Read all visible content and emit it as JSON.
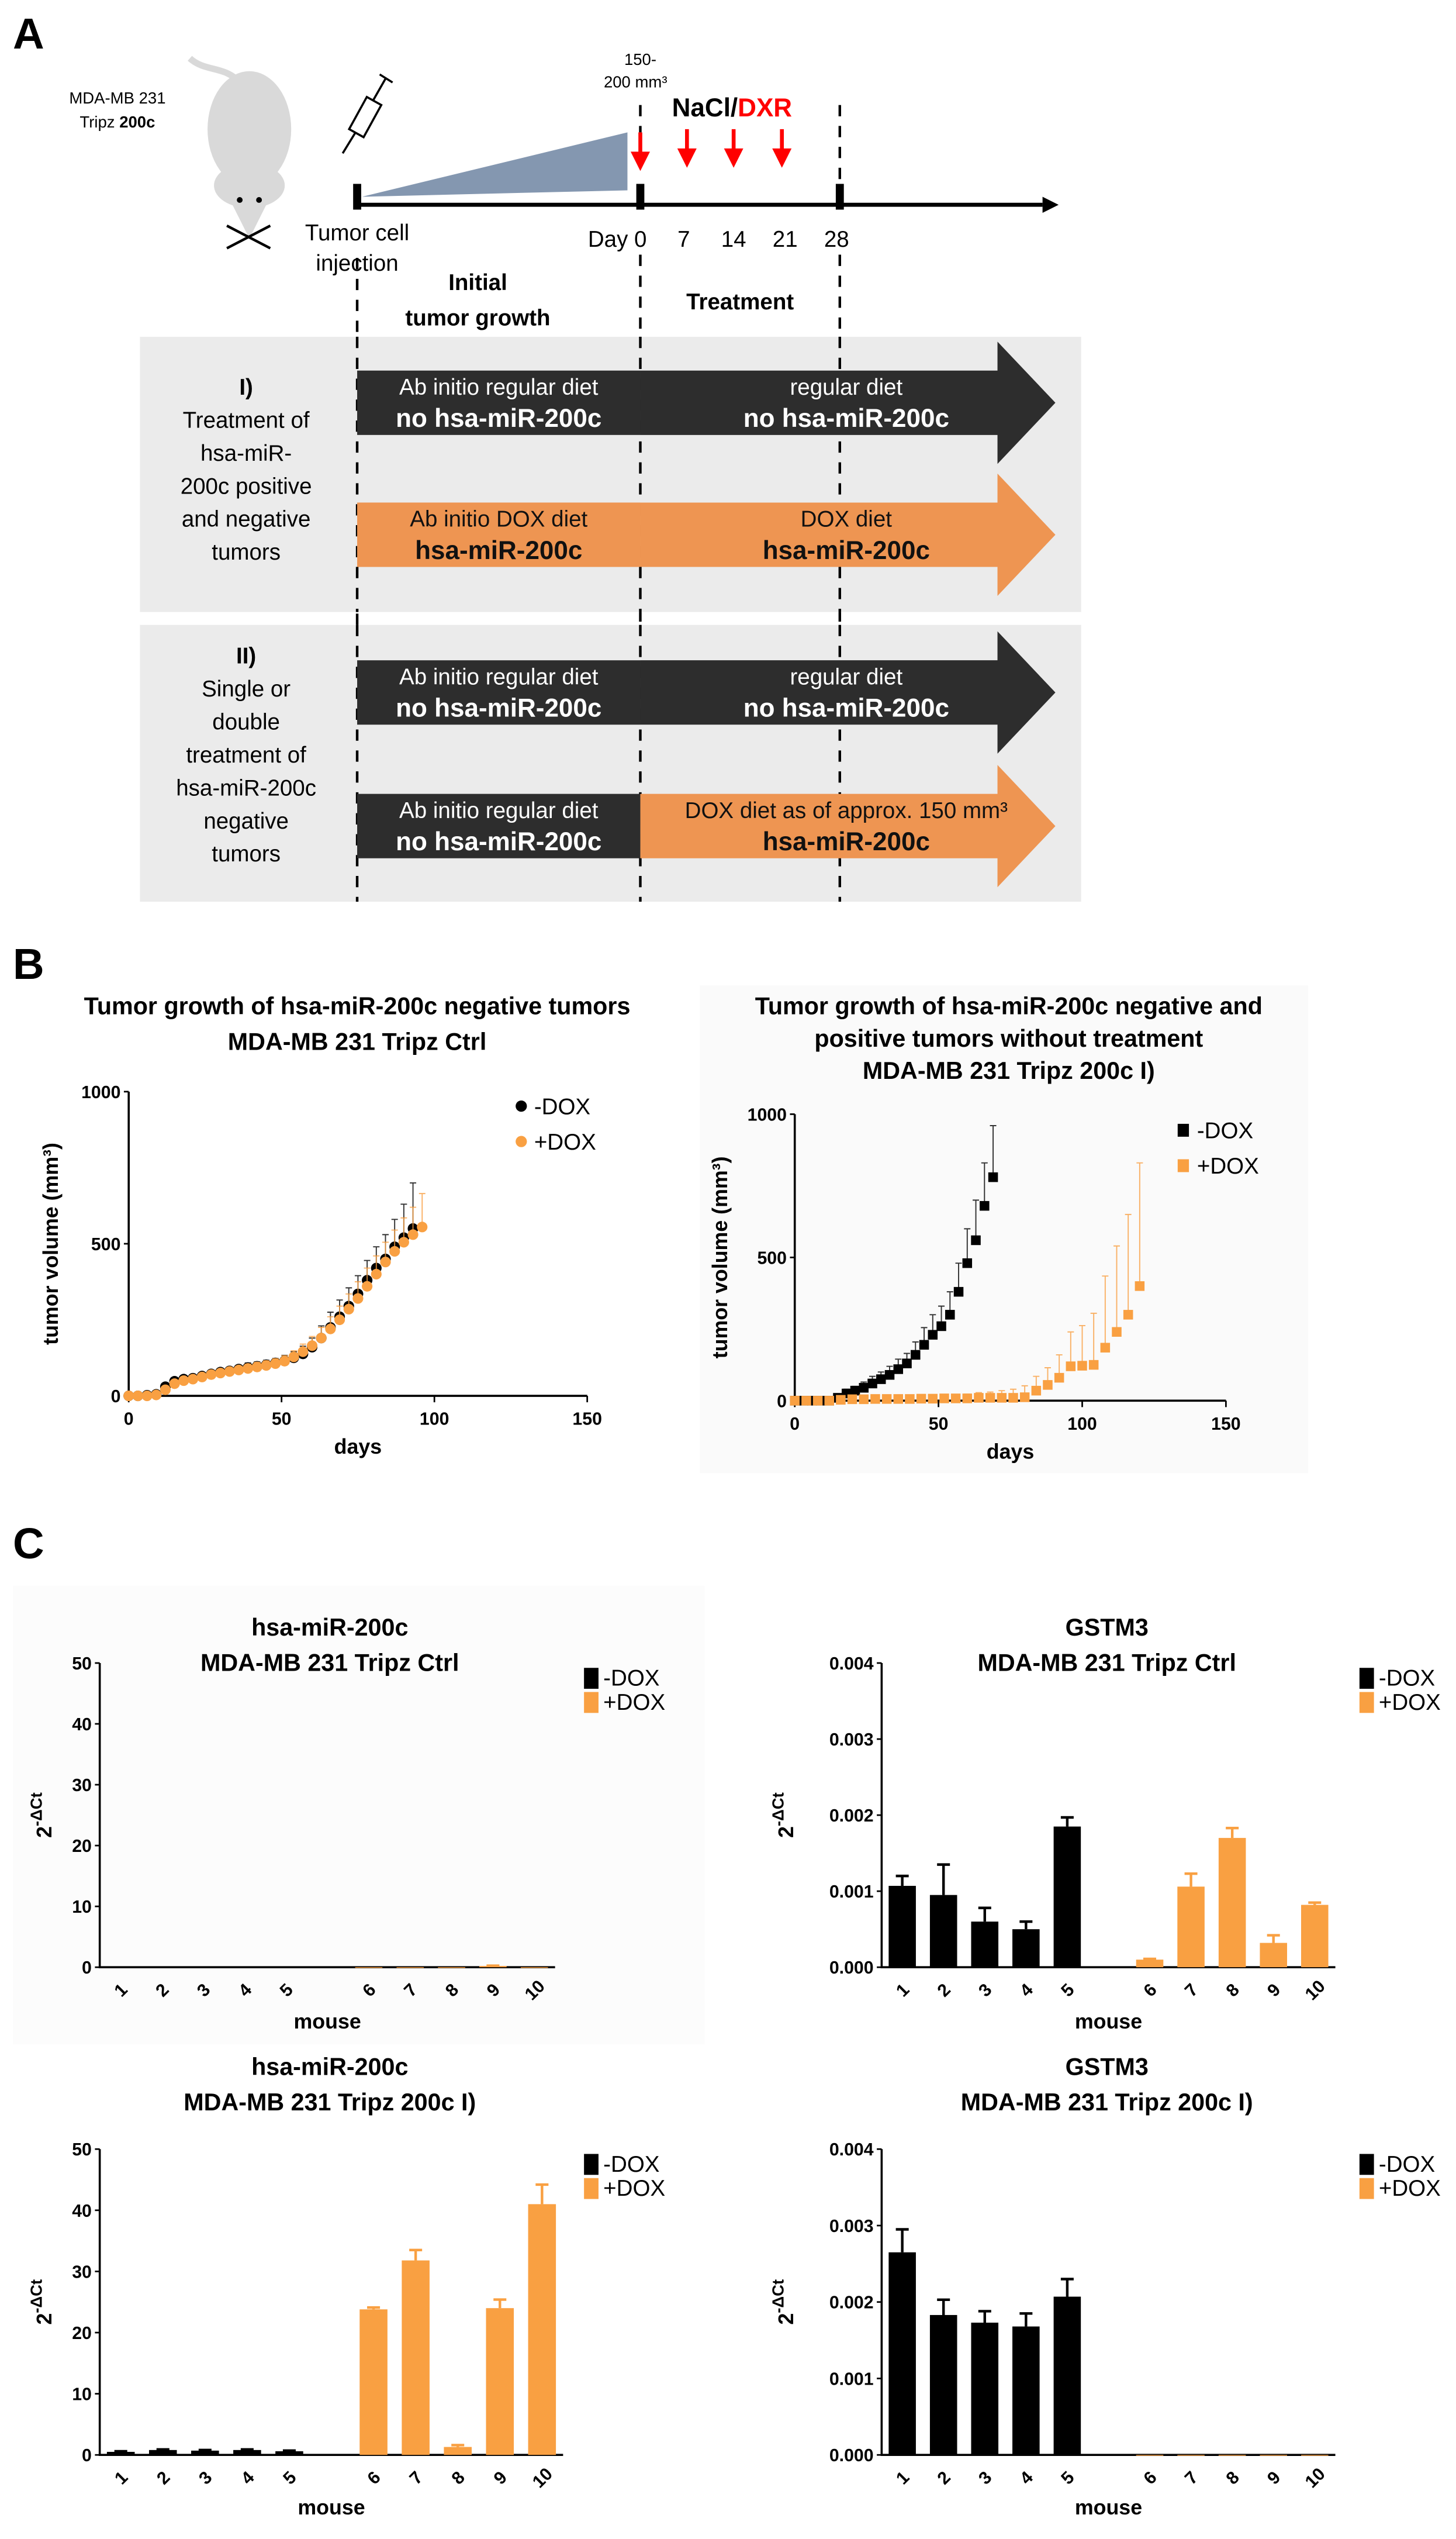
{
  "panel_labels": {
    "a": "A",
    "b": "B",
    "c": "C"
  },
  "colors": {
    "dark": "#2d2d2d",
    "orange": "#ee9552",
    "chart_orange": "#f9a042",
    "red": "#ff0000",
    "triangle": "#8497b0",
    "panel_bg": "#ebebeb"
  },
  "timeline": {
    "cell_line_1": "MDA-MB 231",
    "cell_line_2_prefix": "Tripz ",
    "cell_line_2_bold": "200c",
    "volume_1": "150-",
    "volume_2": "200 mm³",
    "nacl": "NaCl/",
    "dxr": "DXR",
    "days": [
      "Day 0",
      "7",
      "14",
      "21",
      "28"
    ],
    "injection_1": "Tumor cell",
    "injection_2": "injection",
    "phase_initial_1": "Initial",
    "phase_initial_2": "tumor growth",
    "phase_treatment": "Treatment"
  },
  "groups": [
    {
      "label_lines": [
        "I)",
        "Treatment of",
        "hsa-miR-",
        "200c positive",
        "and negative",
        "tumors"
      ],
      "arrows": [
        {
          "left": [
            "Ab initio regular diet",
            "no hsa-miR-200c"
          ],
          "right": [
            "regular diet",
            "no hsa-miR-200c"
          ],
          "left_color": "dark",
          "right_color": "dark"
        },
        {
          "left": [
            "Ab initio DOX diet",
            "hsa-miR-200c"
          ],
          "right": [
            "DOX diet",
            "hsa-miR-200c"
          ],
          "left_color": "orange",
          "right_color": "orange"
        }
      ]
    },
    {
      "label_lines": [
        "II)",
        "Single or",
        "double",
        "treatment of",
        "hsa-miR-200c",
        "negative",
        "tumors"
      ],
      "arrows": [
        {
          "left": [
            "Ab initio regular diet",
            "no hsa-miR-200c"
          ],
          "right": [
            "regular diet",
            "no hsa-miR-200c"
          ],
          "left_color": "dark",
          "right_color": "dark"
        },
        {
          "left": [
            "Ab initio regular diet",
            "no hsa-miR-200c"
          ],
          "right": [
            "DOX diet as of approx. 150 mm³",
            "hsa-miR-200c"
          ],
          "left_color": "dark",
          "right_color": "orange"
        }
      ]
    }
  ],
  "chart_data": [
    {
      "type": "line",
      "title": [
        "Tumor growth of hsa-miR-200c negative tumors",
        "MDA-MB 231 Tripz Ctrl"
      ],
      "xlabel": "days",
      "ylabel": "tumor volume (mm³)",
      "xlim": [
        0,
        150
      ],
      "ylim": [
        0,
        1000
      ],
      "xticks": [
        "0",
        "50",
        "100",
        "150"
      ],
      "yticks": [
        "0",
        "500",
        "1000"
      ],
      "xtick_values": [
        0,
        50,
        100,
        150
      ],
      "ytick_values": [
        0,
        500,
        1000
      ],
      "marker": "circle",
      "legend": "top-right",
      "series": [
        {
          "name": "-DOX",
          "color": "#000000",
          "x": [
            0,
            3,
            6,
            9,
            12,
            15,
            18,
            21,
            24,
            27,
            30,
            33,
            36,
            39,
            42,
            45,
            48,
            51,
            54,
            57,
            60,
            63,
            66,
            69,
            72,
            75,
            78,
            81,
            84,
            87,
            90,
            93
          ],
          "y": [
            0,
            0,
            2,
            5,
            30,
            48,
            55,
            58,
            65,
            72,
            78,
            82,
            88,
            93,
            97,
            102,
            108,
            115,
            125,
            138,
            160,
            190,
            225,
            260,
            295,
            335,
            380,
            420,
            450,
            490,
            520,
            550
          ],
          "err": [
            0,
            0,
            2,
            5,
            10,
            10,
            10,
            10,
            10,
            12,
            12,
            12,
            12,
            15,
            15,
            15,
            15,
            18,
            20,
            25,
            30,
            40,
            50,
            55,
            60,
            60,
            65,
            70,
            80,
            90,
            110,
            150
          ]
        },
        {
          "name": "+DOX",
          "color": "#f9a042",
          "x": [
            0,
            3,
            6,
            9,
            12,
            15,
            18,
            21,
            24,
            27,
            30,
            33,
            36,
            39,
            42,
            45,
            48,
            51,
            54,
            57,
            60,
            63,
            66,
            69,
            72,
            75,
            78,
            81,
            84,
            87,
            90,
            93,
            96
          ],
          "y": [
            0,
            0,
            0,
            3,
            20,
            40,
            50,
            55,
            62,
            70,
            75,
            80,
            85,
            90,
            95,
            100,
            106,
            114,
            128,
            145,
            165,
            190,
            220,
            250,
            285,
            320,
            360,
            400,
            440,
            475,
            505,
            530,
            555
          ],
          "err": [
            0,
            0,
            0,
            3,
            8,
            10,
            10,
            10,
            10,
            12,
            12,
            12,
            12,
            14,
            15,
            15,
            16,
            18,
            20,
            25,
            30,
            35,
            40,
            45,
            50,
            55,
            60,
            60,
            65,
            70,
            80,
            90,
            110
          ]
        }
      ]
    },
    {
      "type": "line",
      "title": [
        "Tumor growth of hsa-miR-200c negative and",
        "positive tumors without treatment",
        "MDA-MB 231 Tripz 200c I)"
      ],
      "xlabel": "days",
      "ylabel": "tumor volume (mm³)",
      "xlim": [
        0,
        150
      ],
      "ylim": [
        0,
        1000
      ],
      "xticks": [
        "0",
        "50",
        "100",
        "150"
      ],
      "yticks": [
        "0",
        "500",
        "1000"
      ],
      "xtick_values": [
        0,
        50,
        100,
        150
      ],
      "ytick_values": [
        0,
        500,
        1000
      ],
      "marker": "square",
      "legend": "top-right",
      "series": [
        {
          "name": "-DOX",
          "color": "#000000",
          "x": [
            0,
            3,
            6,
            9,
            12,
            15,
            18,
            21,
            24,
            27,
            30,
            33,
            36,
            39,
            42,
            45,
            48,
            51,
            54,
            57,
            60,
            63,
            66,
            69
          ],
          "y": [
            0,
            0,
            0,
            0,
            0,
            10,
            25,
            35,
            45,
            60,
            75,
            90,
            110,
            130,
            160,
            195,
            230,
            260,
            300,
            380,
            480,
            560,
            680,
            780
          ],
          "err": [
            0,
            0,
            0,
            0,
            5,
            10,
            15,
            15,
            20,
            25,
            25,
            30,
            35,
            35,
            45,
            60,
            70,
            70,
            80,
            100,
            120,
            140,
            150,
            180
          ]
        },
        {
          "name": "+DOX",
          "color": "#f9a042",
          "x": [
            0,
            4,
            8,
            12,
            16,
            20,
            24,
            28,
            32,
            36,
            40,
            44,
            48,
            52,
            56,
            60,
            64,
            68,
            72,
            76,
            80,
            84,
            88,
            92,
            96,
            100,
            104,
            108,
            112,
            116,
            120
          ],
          "y": [
            0,
            0,
            0,
            0,
            3,
            5,
            5,
            6,
            6,
            6,
            6,
            7,
            7,
            8,
            8,
            8,
            10,
            10,
            10,
            10,
            12,
            35,
            55,
            80,
            120,
            122,
            125,
            185,
            240,
            300,
            400
          ],
          "err": [
            0,
            0,
            0,
            0,
            5,
            5,
            6,
            8,
            8,
            8,
            10,
            10,
            12,
            12,
            14,
            15,
            18,
            20,
            25,
            30,
            40,
            50,
            60,
            80,
            120,
            140,
            180,
            250,
            300,
            350,
            430
          ]
        }
      ]
    },
    {
      "type": "bar",
      "title": [
        "hsa-miR-200c",
        "MDA-MB 231 Tripz Ctrl"
      ],
      "xlabel": "mouse",
      "ylabel_base": "2",
      "ylabel_exp": "-ΔCt",
      "ylim": [
        0,
        50
      ],
      "yticks": [
        "0",
        "10",
        "20",
        "30",
        "40",
        "50"
      ],
      "ytick_values": [
        0,
        10,
        20,
        30,
        40,
        50
      ],
      "categories": [
        "1",
        "2",
        "3",
        "4",
        "5",
        "6",
        "7",
        "8",
        "9",
        "10"
      ],
      "legend": "top-right",
      "series": [
        {
          "name": "-DOX",
          "color": "#000000",
          "values": [
            0.02,
            0.02,
            0.02,
            0.02,
            0.02,
            null,
            null,
            null,
            null,
            null
          ],
          "err": [
            0,
            0,
            0,
            0,
            0,
            null,
            null,
            null,
            null,
            null
          ]
        },
        {
          "name": "+DOX",
          "color": "#f9a042",
          "values": [
            null,
            null,
            null,
            null,
            null,
            0.02,
            0.02,
            0.02,
            0.2,
            0.02
          ],
          "err": [
            null,
            null,
            null,
            null,
            null,
            0,
            0,
            0,
            0.05,
            0
          ]
        }
      ]
    },
    {
      "type": "bar",
      "title": [
        "GSTM3",
        "MDA-MB 231 Tripz Ctrl"
      ],
      "xlabel": "mouse",
      "ylabel_base": "2",
      "ylabel_exp": "-ΔCt",
      "ylim": [
        0,
        0.004
      ],
      "yticks": [
        "0.000",
        "0.001",
        "0.002",
        "0.003",
        "0.004"
      ],
      "ytick_values": [
        0,
        0.001,
        0.002,
        0.003,
        0.004
      ],
      "categories": [
        "1",
        "2",
        "3",
        "4",
        "5",
        "6",
        "7",
        "8",
        "9",
        "10"
      ],
      "legend": "top-right",
      "series": [
        {
          "name": "-DOX",
          "color": "#000000",
          "values": [
            0.00107,
            0.00095,
            0.0006,
            0.0005,
            0.00185,
            null,
            null,
            null,
            null,
            null
          ],
          "err": [
            0.00013,
            0.0004,
            0.00018,
            0.0001,
            0.00012,
            null,
            null,
            null,
            null,
            null
          ]
        },
        {
          "name": "+DOX",
          "color": "#f9a042",
          "values": [
            null,
            null,
            null,
            null,
            null,
            0.0001,
            0.00106,
            0.0017,
            0.00032,
            0.00082
          ],
          "err": [
            null,
            null,
            null,
            null,
            null,
            1e-05,
            0.00017,
            0.00013,
            0.0001,
            3e-05
          ]
        }
      ]
    },
    {
      "type": "bar",
      "title": [
        "hsa-miR-200c",
        "MDA-MB 231 Tripz 200c I)"
      ],
      "xlabel": "mouse",
      "ylabel_base": "2",
      "ylabel_exp": "-ΔCt",
      "ylim": [
        0,
        50
      ],
      "yticks": [
        "0",
        "10",
        "20",
        "30",
        "40",
        "50"
      ],
      "ytick_values": [
        0,
        10,
        20,
        30,
        40,
        50
      ],
      "categories": [
        "1",
        "2",
        "3",
        "4",
        "5",
        "6",
        "7",
        "8",
        "9",
        "10"
      ],
      "legend": "top-right",
      "series": [
        {
          "name": "-DOX",
          "color": "#000000",
          "values": [
            0.5,
            0.8,
            0.7,
            0.8,
            0.6,
            null,
            null,
            null,
            null,
            null
          ],
          "err": [
            0.1,
            0.1,
            0.1,
            0.1,
            0.1,
            null,
            null,
            null,
            null,
            null
          ]
        },
        {
          "name": "+DOX",
          "color": "#f9a042",
          "values": [
            null,
            null,
            null,
            null,
            null,
            23.8,
            31.8,
            1.3,
            24.0,
            41.0
          ],
          "err": [
            null,
            null,
            null,
            null,
            null,
            0.3,
            1.7,
            0.3,
            1.4,
            3.2
          ]
        }
      ]
    },
    {
      "type": "bar",
      "title": [
        "GSTM3",
        "MDA-MB 231 Tripz 200c I)"
      ],
      "xlabel": "mouse",
      "ylabel_base": "2",
      "ylabel_exp": "-ΔCt",
      "ylim": [
        0,
        0.004
      ],
      "yticks": [
        "0.000",
        "0.001",
        "0.002",
        "0.003",
        "0.004"
      ],
      "ytick_values": [
        0,
        0.001,
        0.002,
        0.003,
        0.004
      ],
      "categories": [
        "1",
        "2",
        "3",
        "4",
        "5",
        "6",
        "7",
        "8",
        "9",
        "10"
      ],
      "legend": "top-right",
      "series": [
        {
          "name": "-DOX",
          "color": "#000000",
          "values": [
            0.00265,
            0.00183,
            0.00173,
            0.00168,
            0.00207,
            null,
            null,
            null,
            null,
            null
          ],
          "err": [
            0.0003,
            0.0002,
            0.00015,
            0.00017,
            0.00023,
            null,
            null,
            null,
            null,
            null
          ]
        },
        {
          "name": "+DOX",
          "color": "#f9a042",
          "values": [
            null,
            null,
            null,
            null,
            null,
            0,
            0,
            0,
            0,
            0
          ],
          "err": [
            null,
            null,
            null,
            null,
            null,
            0,
            0,
            0,
            0,
            0
          ]
        }
      ]
    }
  ]
}
